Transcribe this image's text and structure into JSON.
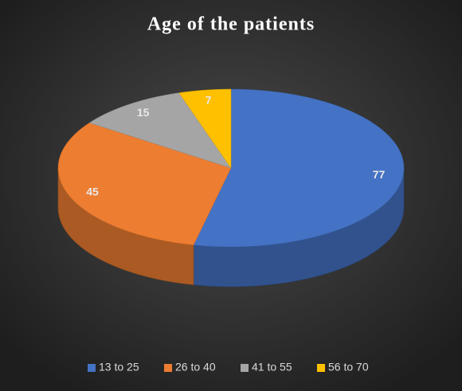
{
  "chart_data": {
    "type": "pie3d",
    "title": "Age of the patients",
    "categories": [
      "13 to 25",
      "26 to 40",
      "41 to 55",
      "56 to 70"
    ],
    "values": [
      77,
      45,
      15,
      7
    ],
    "colors": [
      "#4472c4",
      "#ed7d31",
      "#a5a5a5",
      "#ffc000"
    ],
    "legend": "bottom"
  }
}
